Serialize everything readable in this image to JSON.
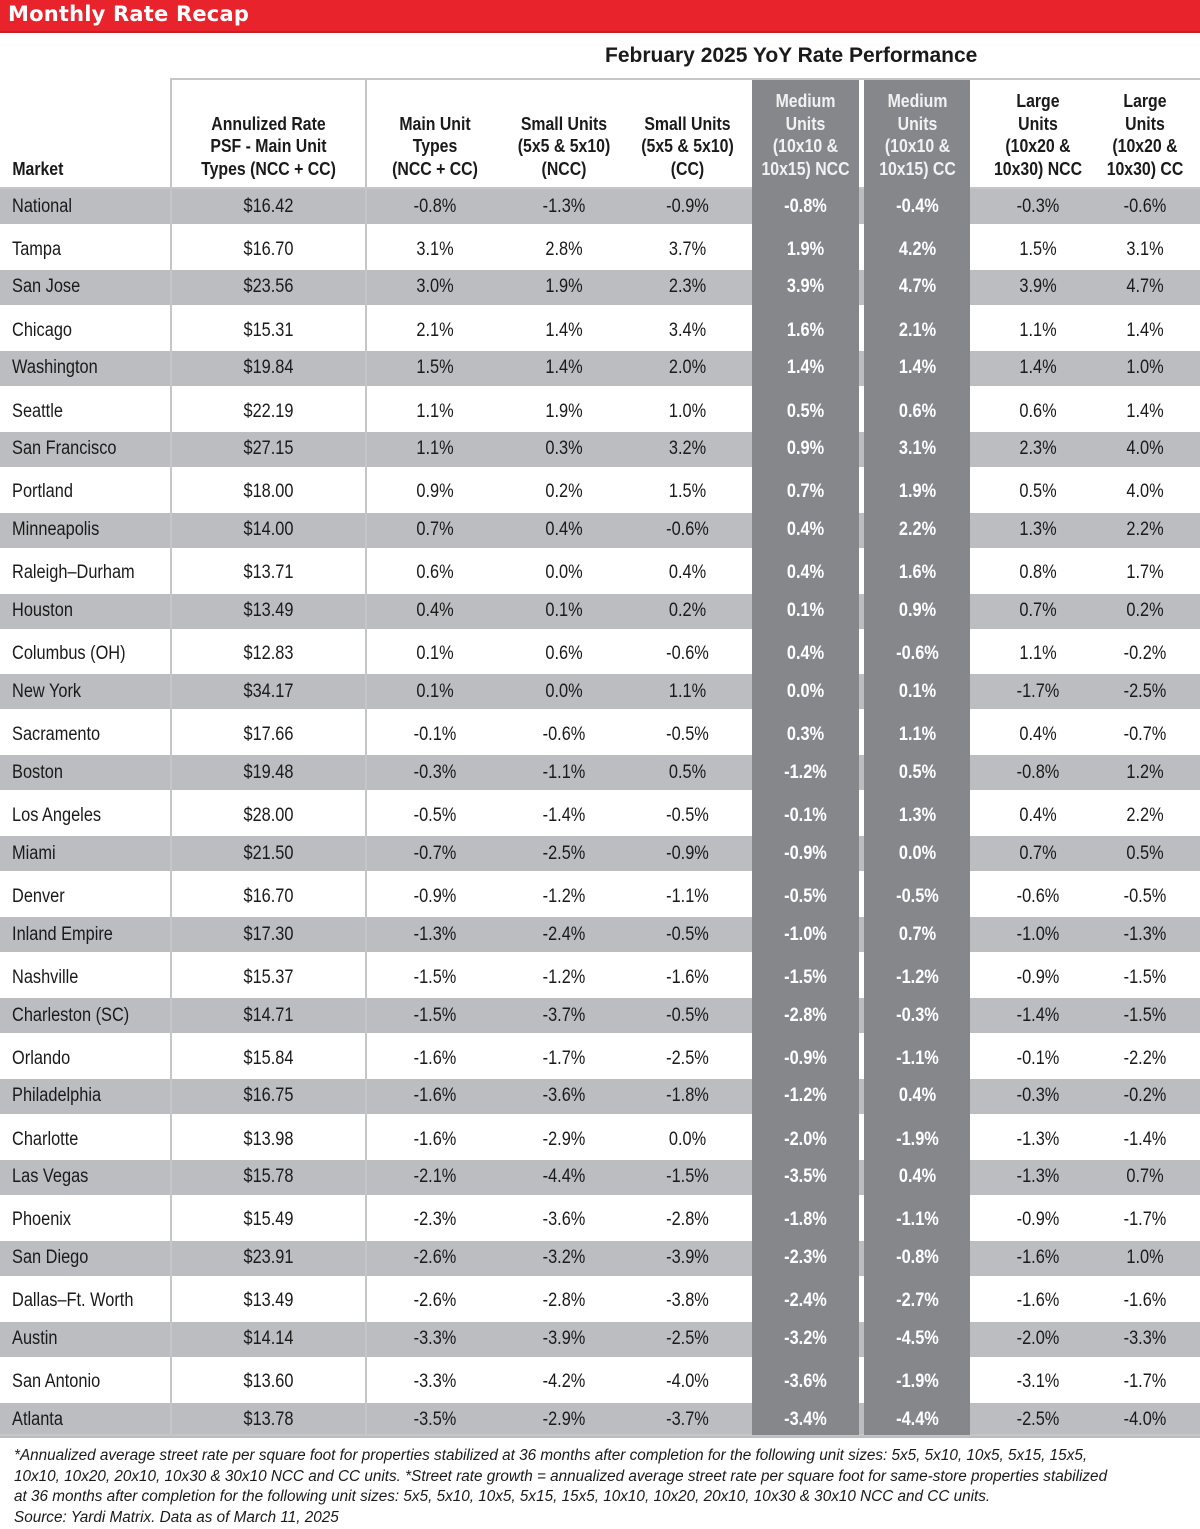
{
  "banner": {
    "title": "Monthly Rate Recap"
  },
  "subtitle": "February 2025 YoY Rate Performance",
  "colors": {
    "accent_red": "#e8232b",
    "row_shade": "#bcbdc0",
    "highlight_column": "#86878b",
    "rule": "#c5c6c8"
  },
  "table": {
    "columns": [
      "Market",
      "Annulized Rate PSF - Main Unit Types (NCC + CC)",
      "Main Unit Types (NCC + CC)",
      "Small Units (5x5 & 5x10) (NCC)",
      "Small Units (5x5 & 5x10) (CC)",
      "Medium Units (10x10 & 10x15) NCC",
      "Medium Units (10x10 & 10x15) CC",
      "Large Units (10x20 & 10x30) NCC",
      "Large Units (10x20 & 10x30) CC"
    ],
    "header_lines": [
      [
        "Market"
      ],
      [
        "Annulized Rate",
        "PSF - Main Unit",
        "Types (NCC + CC)"
      ],
      [
        "Main Unit",
        "Types",
        "(NCC + CC)"
      ],
      [
        "Small Units",
        "(5x5 & 5x10)",
        "(NCC)"
      ],
      [
        "Small Units",
        "(5x5 & 5x10)",
        "(CC)"
      ],
      [
        "Medium",
        "Units",
        "(10x10 &",
        "10x15) NCC"
      ],
      [
        "Medium",
        "Units",
        "(10x10 &",
        "10x15) CC"
      ],
      [
        "Large",
        "Units",
        "(10x20 &",
        "10x30) NCC"
      ],
      [
        "Large",
        "Units",
        "(10x20 &",
        "10x30) CC"
      ]
    ],
    "rows": [
      [
        "National",
        "$16.42",
        "-0.8%",
        "-1.3%",
        "-0.9%",
        "-0.8%",
        "-0.4%",
        "-0.3%",
        "-0.6%"
      ],
      [
        "Tampa",
        "$16.70",
        "3.1%",
        "2.8%",
        "3.7%",
        "1.9%",
        "4.2%",
        "1.5%",
        "3.1%"
      ],
      [
        "San Jose",
        "$23.56",
        "3.0%",
        "1.9%",
        "2.3%",
        "3.9%",
        "4.7%",
        "3.9%",
        "4.7%"
      ],
      [
        "Chicago",
        "$15.31",
        "2.1%",
        "1.4%",
        "3.4%",
        "1.6%",
        "2.1%",
        "1.1%",
        "1.4%"
      ],
      [
        "Washington",
        "$19.84",
        "1.5%",
        "1.4%",
        "2.0%",
        "1.4%",
        "1.4%",
        "1.4%",
        "1.0%"
      ],
      [
        "Seattle",
        "$22.19",
        "1.1%",
        "1.9%",
        "1.0%",
        "0.5%",
        "0.6%",
        "0.6%",
        "1.4%"
      ],
      [
        "San Francisco",
        "$27.15",
        "1.1%",
        "0.3%",
        "3.2%",
        "0.9%",
        "3.1%",
        "2.3%",
        "4.0%"
      ],
      [
        "Portland",
        "$18.00",
        "0.9%",
        "0.2%",
        "1.5%",
        "0.7%",
        "1.9%",
        "0.5%",
        "4.0%"
      ],
      [
        "Minneapolis",
        "$14.00",
        "0.7%",
        "0.4%",
        "-0.6%",
        "0.4%",
        "2.2%",
        "1.3%",
        "2.2%"
      ],
      [
        "Raleigh–Durham",
        "$13.71",
        "0.6%",
        "0.0%",
        "0.4%",
        "0.4%",
        "1.6%",
        "0.8%",
        "1.7%"
      ],
      [
        "Houston",
        "$13.49",
        "0.4%",
        "0.1%",
        "0.2%",
        "0.1%",
        "0.9%",
        "0.7%",
        "0.2%"
      ],
      [
        "Columbus (OH)",
        "$12.83",
        "0.1%",
        "0.6%",
        "-0.6%",
        "0.4%",
        "-0.6%",
        "1.1%",
        "-0.2%"
      ],
      [
        "New York",
        "$34.17",
        "0.1%",
        "0.0%",
        "1.1%",
        "0.0%",
        "0.1%",
        "-1.7%",
        "-2.5%"
      ],
      [
        "Sacramento",
        "$17.66",
        "-0.1%",
        "-0.6%",
        "-0.5%",
        "0.3%",
        "1.1%",
        "0.4%",
        "-0.7%"
      ],
      [
        "Boston",
        "$19.48",
        "-0.3%",
        "-1.1%",
        "0.5%",
        "-1.2%",
        "0.5%",
        "-0.8%",
        "1.2%"
      ],
      [
        "Los Angeles",
        "$28.00",
        "-0.5%",
        "-1.4%",
        "-0.5%",
        "-0.1%",
        "1.3%",
        "0.4%",
        "2.2%"
      ],
      [
        "Miami",
        "$21.50",
        "-0.7%",
        "-2.5%",
        "-0.9%",
        "-0.9%",
        "0.0%",
        "0.7%",
        "0.5%"
      ],
      [
        "Denver",
        "$16.70",
        "-0.9%",
        "-1.2%",
        "-1.1%",
        "-0.5%",
        "-0.5%",
        "-0.6%",
        "-0.5%"
      ],
      [
        "Inland Empire",
        "$17.30",
        "-1.3%",
        "-2.4%",
        "-0.5%",
        "-1.0%",
        "0.7%",
        "-1.0%",
        "-1.3%"
      ],
      [
        "Nashville",
        "$15.37",
        "-1.5%",
        "-1.2%",
        "-1.6%",
        "-1.5%",
        "-1.2%",
        "-0.9%",
        "-1.5%"
      ],
      [
        "Charleston (SC)",
        "$14.71",
        "-1.5%",
        "-3.7%",
        "-0.5%",
        "-2.8%",
        "-0.3%",
        "-1.4%",
        "-1.5%"
      ],
      [
        "Orlando",
        "$15.84",
        "-1.6%",
        "-1.7%",
        "-2.5%",
        "-0.9%",
        "-1.1%",
        "-0.1%",
        "-2.2%"
      ],
      [
        "Philadelphia",
        "$16.75",
        "-1.6%",
        "-3.6%",
        "-1.8%",
        "-1.2%",
        "0.4%",
        "-0.3%",
        "-0.2%"
      ],
      [
        "Charlotte",
        "$13.98",
        "-1.6%",
        "-2.9%",
        "0.0%",
        "-2.0%",
        "-1.9%",
        "-1.3%",
        "-1.4%"
      ],
      [
        "Las Vegas",
        "$15.78",
        "-2.1%",
        "-4.4%",
        "-1.5%",
        "-3.5%",
        "0.4%",
        "-1.3%",
        "0.7%"
      ],
      [
        "Phoenix",
        "$15.49",
        "-2.3%",
        "-3.6%",
        "-2.8%",
        "-1.8%",
        "-1.1%",
        "-0.9%",
        "-1.7%"
      ],
      [
        "San Diego",
        "$23.91",
        "-2.6%",
        "-3.2%",
        "-3.9%",
        "-2.3%",
        "-0.8%",
        "-1.6%",
        "1.0%"
      ],
      [
        "Dallas–Ft. Worth",
        "$13.49",
        "-2.6%",
        "-2.8%",
        "-3.8%",
        "-2.4%",
        "-2.7%",
        "-1.6%",
        "-1.6%"
      ],
      [
        "Austin",
        "$14.14",
        "-3.3%",
        "-3.9%",
        "-2.5%",
        "-3.2%",
        "-4.5%",
        "-2.0%",
        "-3.3%"
      ],
      [
        "San Antonio",
        "$13.60",
        "-3.3%",
        "-4.2%",
        "-4.0%",
        "-3.6%",
        "-1.9%",
        "-3.1%",
        "-1.7%"
      ],
      [
        "Atlanta",
        "$13.78",
        "-3.5%",
        "-2.9%",
        "-3.7%",
        "-3.4%",
        "-4.4%",
        "-2.5%",
        "-4.0%"
      ]
    ]
  },
  "footnote": {
    "lines": [
      "*Annualized average street rate per square foot for properties stabilized at 36 months after completion for the following unit sizes: 5x5, 5x10, 10x5, 5x15, 15x5,",
      "10x10, 10x20, 20x10, 10x30 & 30x10 NCC and CC units. *Street rate growth = annualized average street rate per square foot for same-store properties stabilized",
      "at 36 months after completion for the following unit sizes: 5x5, 5x10, 10x5, 5x15, 15x5, 10x10, 10x20, 20x10, 10x30 & 30x10 NCC and CC units.",
      "Source: Yardi Matrix. Data as of March 11, 2025"
    ]
  }
}
